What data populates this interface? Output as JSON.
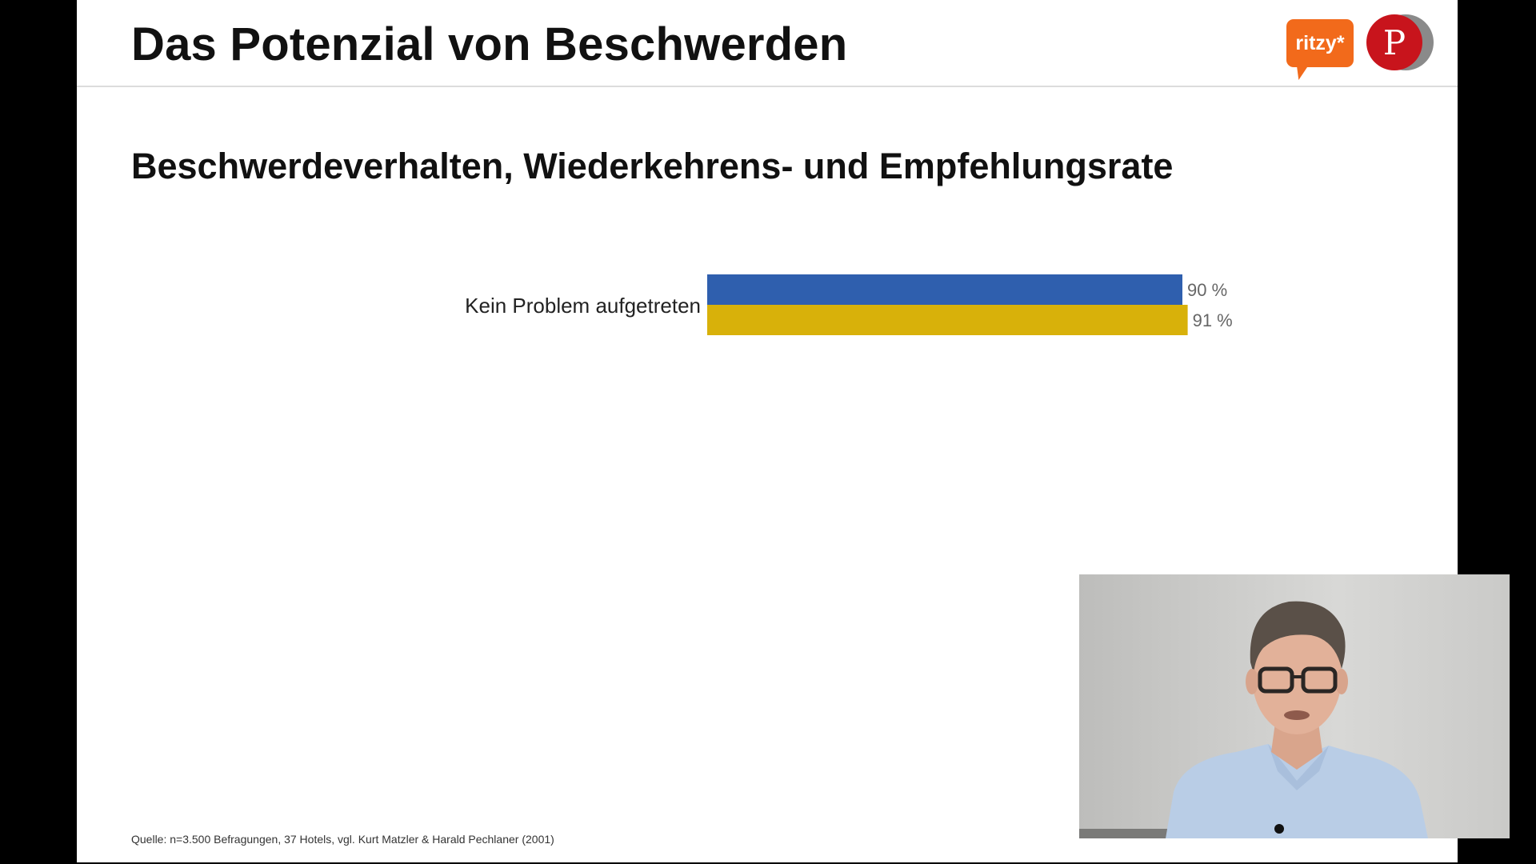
{
  "slide": {
    "title": "Das Potenzial von Beschwerden",
    "subtitle": "Beschwerdeverhalten, Wiederkehrens- und Empfehlungsrate",
    "source": "Quelle: n=3.500 Befragungen, 37 Hotels, vgl. Kurt Matzler & Harald Pechlaner (2001)"
  },
  "logos": {
    "ritzy": "ritzy*",
    "p_mark": "P"
  },
  "colors": {
    "series_blue": "#2f5fae",
    "series_gold": "#d8b10a",
    "ritzy_orange": "#f26a1b",
    "p_red": "#c8141c"
  },
  "chart_data": {
    "type": "bar",
    "orientation": "horizontal",
    "categories": [
      "Kein Problem aufgetreten"
    ],
    "series": [
      {
        "values": [
          90
        ],
        "labels": [
          "90 %"
        ],
        "color": "#2f5fae"
      },
      {
        "values": [
          91
        ],
        "labels": [
          "91 %"
        ],
        "color": "#d8b10a"
      }
    ],
    "xlim": [
      0,
      100
    ],
    "grid": false
  },
  "webcam": {
    "icons": [
      "presenter-video-feed",
      "lapel-microphone-icon"
    ]
  }
}
